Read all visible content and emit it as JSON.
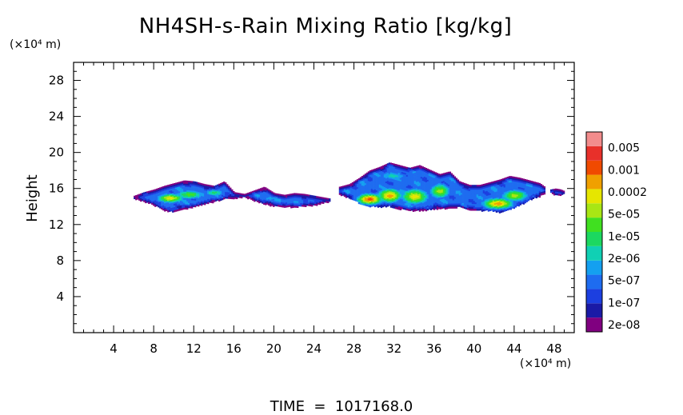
{
  "chart_data": {
    "type": "heatmap",
    "title": "NH4SH-s-Rain Mixing Ratio [kg/kg]",
    "ylabel": "Height",
    "xunit": "(×10⁴ m)",
    "yunit": "(×10⁴ m)",
    "footer": "TIME  =  1017168.0",
    "xlim": [
      0,
      50
    ],
    "ylim": [
      0,
      30
    ],
    "xticks": [
      4,
      8,
      12,
      16,
      20,
      24,
      28,
      32,
      36,
      40,
      44,
      48
    ],
    "yticks": [
      4,
      8,
      12,
      16,
      20,
      24,
      28
    ],
    "grid": false,
    "colorbar": {
      "colors": [
        "#800080",
        "#1a1aa6",
        "#1c3fe0",
        "#1e6cf0",
        "#14a0f0",
        "#10d0b4",
        "#1cd860",
        "#40e020",
        "#a8e614",
        "#e6e600",
        "#f0a000",
        "#f04a00",
        "#e8302a",
        "#f28c8c"
      ],
      "labels": [
        "2e-08",
        "1e-07",
        "5e-07",
        "2e-06",
        "1e-05",
        "5e-05",
        "0.0002",
        "0.001",
        "0.005"
      ]
    },
    "regions": [
      {
        "name": "west-cloud",
        "x": [
          6.0,
          7.0,
          8.0,
          9.0,
          10.0,
          11.0,
          12.0,
          13.0,
          14.0,
          15.0,
          16.0,
          17.0,
          18.0,
          19.0,
          20.0,
          21.0,
          22.0,
          23.0,
          24.0,
          25.5
        ],
        "y_bottom": [
          14.9,
          14.6,
          14.2,
          13.6,
          13.5,
          13.8,
          14.0,
          14.3,
          14.6,
          14.9,
          15.0,
          15.1,
          14.7,
          14.3,
          14.1,
          14.0,
          14.0,
          14.1,
          14.2,
          14.6
        ],
        "y_top": [
          15.2,
          15.6,
          15.9,
          16.3,
          16.6,
          16.9,
          16.8,
          16.5,
          16.3,
          16.8,
          15.6,
          15.4,
          15.8,
          16.2,
          15.5,
          15.3,
          15.5,
          15.4,
          15.2,
          14.9
        ],
        "cores": [
          {
            "x": 9.6,
            "y": 15.0,
            "sx": 1.6,
            "sy": 0.6,
            "level": 9
          },
          {
            "x": 11.5,
            "y": 15.4,
            "sx": 1.8,
            "sy": 0.6,
            "level": 7
          },
          {
            "x": 14.0,
            "y": 15.6,
            "sx": 1.2,
            "sy": 0.5,
            "level": 6
          },
          {
            "x": 19.5,
            "y": 15.0,
            "sx": 1.0,
            "sy": 0.4,
            "level": 4
          }
        ]
      },
      {
        "name": "east-cloud",
        "x": [
          26.5,
          27.5,
          28.5,
          29.5,
          30.5,
          31.5,
          32.5,
          33.5,
          34.5,
          35.5,
          36.5,
          37.5,
          38.5,
          39.5,
          40.5,
          41.5,
          42.5,
          43.5,
          44.5,
          45.5,
          46.5,
          47.0
        ],
        "y_bottom": [
          15.4,
          15.0,
          14.4,
          14.1,
          14.0,
          14.1,
          13.8,
          13.6,
          13.6,
          13.7,
          13.8,
          13.9,
          14.0,
          13.7,
          13.6,
          13.6,
          13.4,
          13.7,
          14.2,
          14.8,
          15.2,
          15.5
        ],
        "y_top": [
          16.2,
          16.5,
          17.2,
          18.0,
          18.4,
          18.9,
          18.6,
          18.3,
          18.6,
          18.1,
          17.6,
          17.9,
          16.8,
          16.4,
          16.4,
          16.7,
          17.0,
          17.4,
          17.2,
          16.9,
          16.6,
          16.2
        ],
        "cores": [
          {
            "x": 29.5,
            "y": 14.9,
            "sx": 1.5,
            "sy": 0.7,
            "level": 11
          },
          {
            "x": 31.5,
            "y": 15.3,
            "sx": 1.4,
            "sy": 0.9,
            "level": 10
          },
          {
            "x": 34.0,
            "y": 15.2,
            "sx": 1.6,
            "sy": 1.0,
            "level": 9
          },
          {
            "x": 36.5,
            "y": 15.8,
            "sx": 1.2,
            "sy": 1.0,
            "level": 8
          },
          {
            "x": 42.3,
            "y": 14.4,
            "sx": 1.8,
            "sy": 0.7,
            "level": 10
          },
          {
            "x": 44.0,
            "y": 15.3,
            "sx": 1.6,
            "sy": 0.8,
            "level": 8
          },
          {
            "x": 31.8,
            "y": 17.5,
            "sx": 1.8,
            "sy": 0.6,
            "level": 5
          }
        ]
      },
      {
        "name": "east-tail-fragment",
        "x": [
          47.6,
          48.1,
          48.6,
          49.0
        ],
        "y_bottom": [
          15.6,
          15.3,
          15.3,
          15.5
        ],
        "y_top": [
          15.9,
          16.0,
          15.9,
          15.7
        ],
        "cores": []
      }
    ]
  }
}
